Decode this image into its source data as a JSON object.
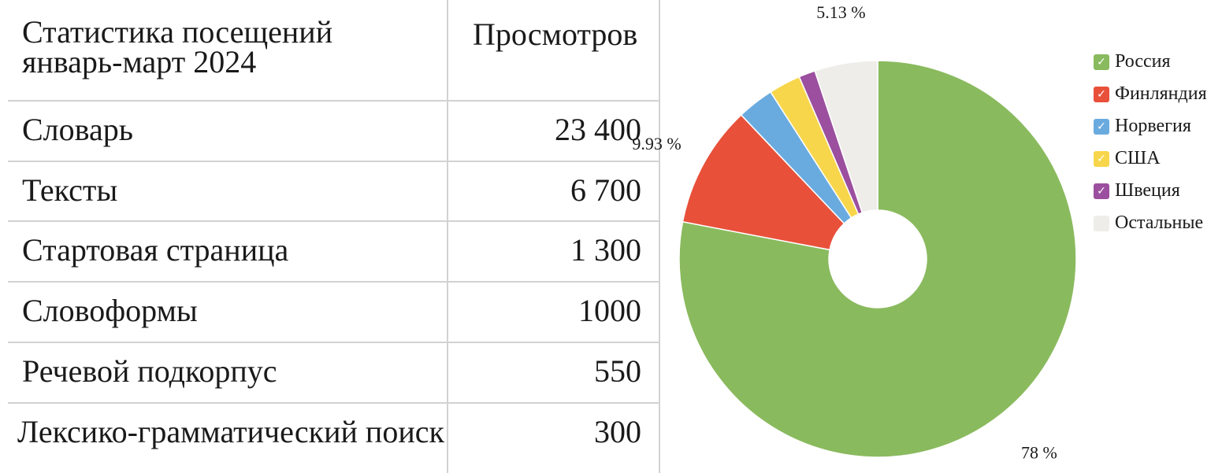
{
  "table": {
    "header": {
      "title": "Статистика посещений январь-март 2024",
      "views": "Просмотров"
    },
    "rows": [
      {
        "label": "Словарь",
        "value": "23 400"
      },
      {
        "label": "Тексты",
        "value": "6 700"
      },
      {
        "label": "Стартовая страница",
        "value": "1 300"
      },
      {
        "label": "Словоформы",
        "value": "1000"
      },
      {
        "label": "Речевой подкорпус",
        "value": "550"
      },
      {
        "label": "Лексико-грамматический поиск",
        "value": "300"
      }
    ]
  },
  "chart_data": {
    "type": "pie",
    "donut": true,
    "start": "12 o'clock, clockwise",
    "legend_position": "right",
    "slices": [
      {
        "name": "Россия",
        "value": 78,
        "color": "#8aba5e",
        "checked": true
      },
      {
        "name": "Финляндия",
        "value": 9.93,
        "color": "#e8503a",
        "checked": true
      },
      {
        "name": "Норвегия",
        "value": 3.0,
        "color": "#6aabdf",
        "checked": true
      },
      {
        "name": "США",
        "value": 2.6,
        "color": "#f7d64b",
        "checked": true
      },
      {
        "name": "Швеция",
        "value": 1.34,
        "color": "#9b4f9e",
        "checked": true
      },
      {
        "name": "Остальные",
        "value": 5.13,
        "color": "#efedea",
        "checked": false
      }
    ],
    "data_labels": [
      {
        "slice": "Остальные",
        "text": "5.13 %"
      },
      {
        "slice": "Финляндия",
        "text": "9.93 %"
      },
      {
        "slice": "Россия",
        "text": "78 %"
      }
    ]
  }
}
